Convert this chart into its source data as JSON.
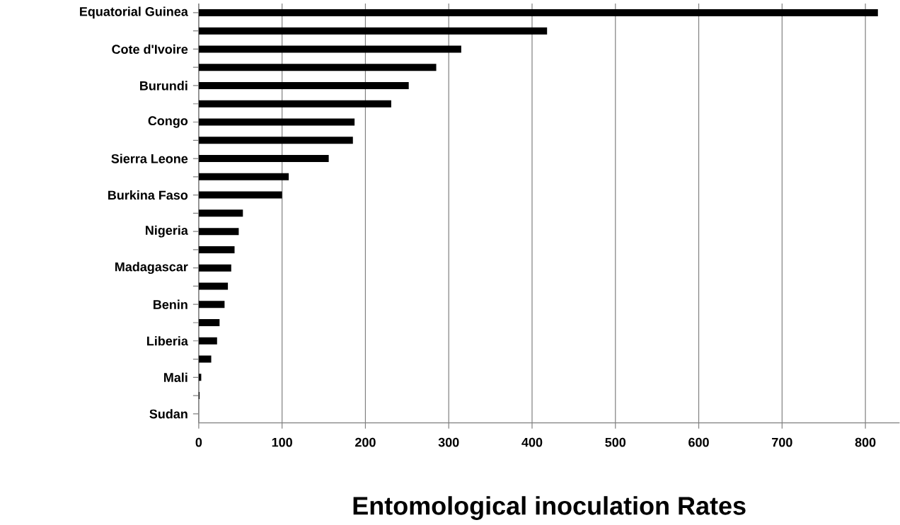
{
  "chart_data": {
    "type": "bar",
    "orientation": "horizontal",
    "xlabel": "Entomological inoculation Rates",
    "categories": [
      "Equatorial Guinea",
      null,
      "Cote d'Ivoire",
      null,
      "Burundi",
      null,
      "Congo",
      null,
      "Sierra Leone",
      null,
      "Burkina Faso",
      null,
      "Nigeria",
      null,
      "Madagascar",
      null,
      "Benin",
      null,
      "Liberia",
      null,
      "Mali",
      null,
      "Sudan"
    ],
    "values": [
      815,
      418,
      315,
      285,
      252,
      231,
      187,
      185,
      156,
      108,
      100,
      53,
      48,
      43,
      39,
      35,
      31,
      25,
      22,
      15,
      3,
      1,
      null
    ],
    "color": "#000000",
    "xlim": [
      0,
      841
    ],
    "xticks": [
      0,
      100,
      200,
      300,
      400,
      500,
      600,
      700,
      800
    ],
    "grid": "x"
  }
}
